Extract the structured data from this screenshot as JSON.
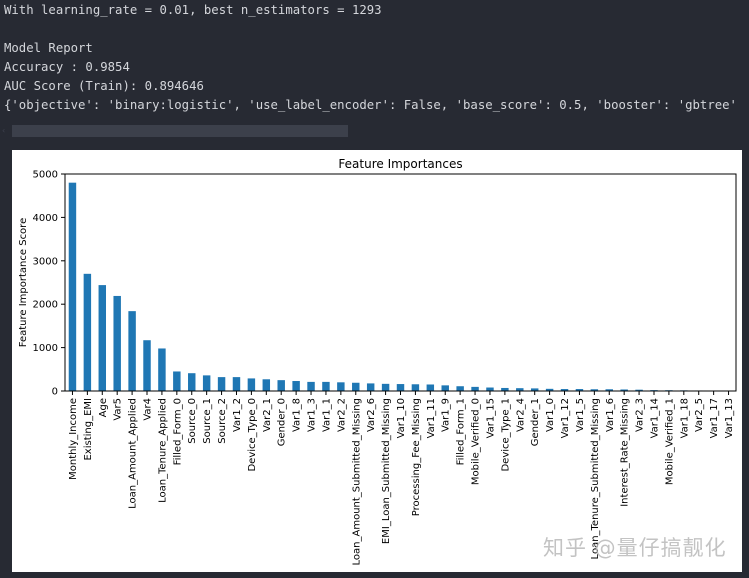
{
  "output": {
    "lines": [
      "With learning_rate = 0.01, best n_estimators = 1293",
      "",
      "Model Report",
      "Accuracy : 0.9854",
      "AUC Score (Train): 0.894646",
      "{'objective': 'binary:logistic', 'use_label_encoder': False, 'base_score': 0.5, 'booster': 'gbtree'"
    ]
  },
  "scrollbar": {
    "arrow": "‹"
  },
  "watermark": "知乎 @量仔搞靓化",
  "colors": {
    "background": "#272a33",
    "bar": "#1f77b4",
    "text": "#d4d6db"
  },
  "chart_data": {
    "type": "bar",
    "title": "Feature Importances",
    "xlabel": "",
    "ylabel": "Feature Importance Score",
    "ylim": [
      0,
      5000
    ],
    "yticks": [
      0,
      1000,
      2000,
      3000,
      4000,
      5000
    ],
    "grid": false,
    "legend": null,
    "categories": [
      "Monthly_Income",
      "Existing_EMI",
      "Age",
      "Var5",
      "Loan_Amount_Applied",
      "Var4",
      "Loan_Tenure_Applied",
      "Filled_Form_0",
      "Source_0",
      "Source_1",
      "Source_2",
      "Var1_2",
      "Device_Type_0",
      "Var2_1",
      "Gender_0",
      "Var1_8",
      "Var1_3",
      "Var1_1",
      "Var2_2",
      "Loan_Amount_Submitted_Missing",
      "Var2_6",
      "EMI_Loan_Submitted_Missing",
      "Var1_10",
      "Processing_Fee_Missing",
      "Var1_11",
      "Var1_9",
      "Filled_Form_1",
      "Mobile_Verified_0",
      "Var1_15",
      "Device_Type_1",
      "Var2_4",
      "Gender_1",
      "Var1_0",
      "Var1_12",
      "Var1_5",
      "Loan_Tenure_Submitted_Missing",
      "Var1_6",
      "Interest_Rate_Missing",
      "Var2_3",
      "Var1_14",
      "Mobile_Verified_1",
      "Var1_18",
      "Var2_5",
      "Var1_17",
      "Var1_13"
    ],
    "values": [
      4800,
      2700,
      2440,
      2190,
      1840,
      1170,
      980,
      450,
      410,
      360,
      320,
      320,
      290,
      270,
      250,
      230,
      210,
      210,
      200,
      190,
      175,
      165,
      160,
      155,
      150,
      130,
      110,
      95,
      80,
      70,
      65,
      60,
      50,
      45,
      45,
      40,
      40,
      35,
      30,
      20,
      18,
      15,
      12,
      5,
      3
    ]
  }
}
